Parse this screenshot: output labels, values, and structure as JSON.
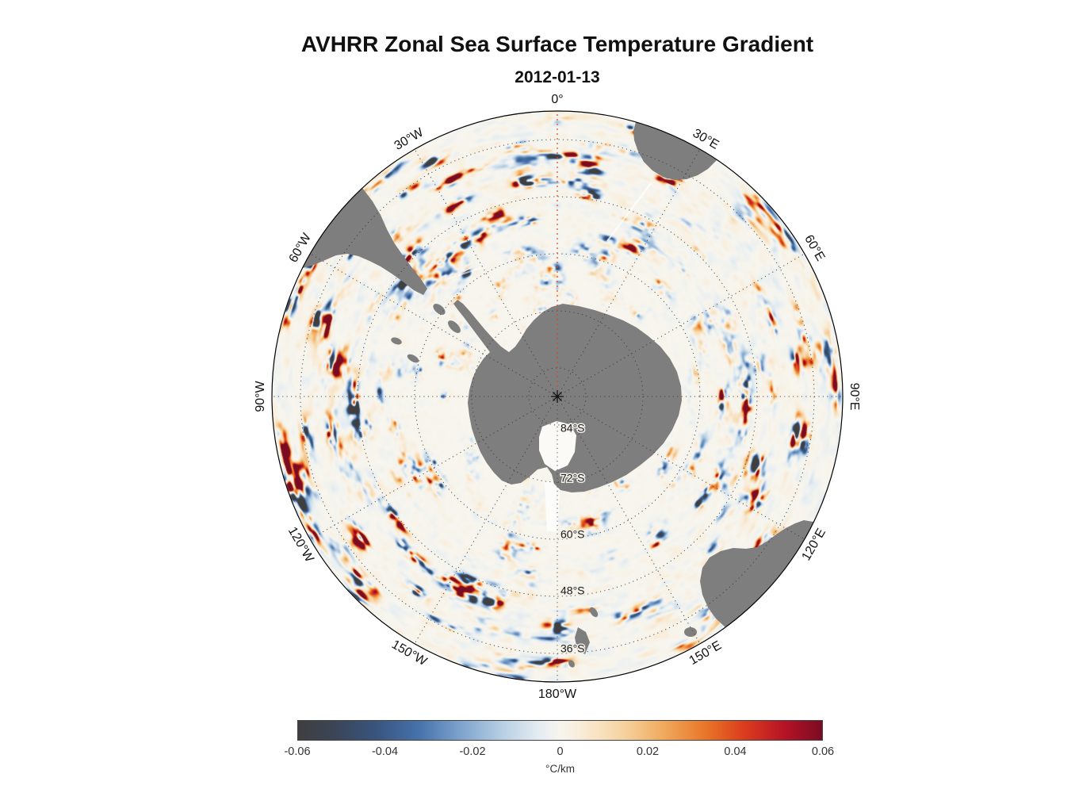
{
  "title": "AVHRR Zonal Sea Surface Temperature Gradient",
  "subtitle": "2012-01-13",
  "map": {
    "lon_labels": [
      "0°",
      "30°E",
      "60°E",
      "90°E",
      "120°E",
      "150°E",
      "180°W",
      "150°W",
      "120°W",
      "90°W",
      "60°W",
      "30°W"
    ],
    "lat_labels": [
      "84°S",
      "72°S",
      "60°S",
      "48°S",
      "36°S"
    ],
    "land_color": "#7e7e7e",
    "grid_color": "#3a3a3a",
    "prime_meridian_color": "#d24a28"
  },
  "colorbar": {
    "ticks": [
      "-0.06",
      "-0.04",
      "-0.02",
      "0",
      "0.02",
      "0.04",
      "0.06"
    ],
    "unit": "°C/km",
    "min": -0.06,
    "max": 0.06,
    "stops": [
      {
        "t": 0.0,
        "c": "#3f3f3f"
      },
      {
        "t": 0.07,
        "c": "#3b4557"
      },
      {
        "t": 0.15,
        "c": "#39557f"
      },
      {
        "t": 0.23,
        "c": "#4672ab"
      },
      {
        "t": 0.31,
        "c": "#7da3cd"
      },
      {
        "t": 0.39,
        "c": "#b8cfe4"
      },
      {
        "t": 0.46,
        "c": "#e4edf2"
      },
      {
        "t": 0.5,
        "c": "#f7f5ee"
      },
      {
        "t": 0.54,
        "c": "#f9ecd8"
      },
      {
        "t": 0.62,
        "c": "#f6d3a0"
      },
      {
        "t": 0.7,
        "c": "#f0a85b"
      },
      {
        "t": 0.78,
        "c": "#e87428"
      },
      {
        "t": 0.85,
        "c": "#dc3d1d"
      },
      {
        "t": 0.93,
        "c": "#b51226"
      },
      {
        "t": 1.0,
        "c": "#7a0c22"
      }
    ]
  },
  "chart_data": {
    "type": "heatmap",
    "title": "AVHRR Zonal Sea Surface Temperature Gradient",
    "subtitle": "2012-01-13",
    "projection": "south-polar-stereographic",
    "variable": "zonal sea surface temperature gradient",
    "units": "°C/km",
    "colorbar": {
      "min": -0.06,
      "max": 0.06,
      "ticks": [
        -0.06,
        -0.04,
        -0.02,
        0,
        0.02,
        0.04,
        0.06
      ],
      "unit": "°C/km",
      "orientation": "horizontal",
      "style": "diverging gray-blue-white-orange-red"
    },
    "meridian_labels_deg_clockwise_from_top": [
      0,
      30,
      60,
      90,
      120,
      150,
      180,
      210,
      240,
      270,
      300,
      330
    ],
    "meridian_label_text": [
      "0°",
      "30°E",
      "60°E",
      "90°E",
      "120°E",
      "150°E",
      "180°W",
      "150°W",
      "120°W",
      "90°W",
      "60°W",
      "30°W"
    ],
    "parallel_labels": [
      "84°S",
      "72°S",
      "60°S",
      "48°S",
      "36°S"
    ],
    "grid": "dotted graticule, meridians every 30°, parallels every 12°",
    "land": "gray silhouettes: Antarctica (center), South America (upper left), Africa (upper right), Australia + Tasmania (lower right), New Zealand (bottom)",
    "notes": "field values mostly near 0 (pale) with elongated zonal streaks of strong positive (red) and negative (blue) gradient over the Southern Ocean"
  },
  "field": {
    "seed": 11
  }
}
